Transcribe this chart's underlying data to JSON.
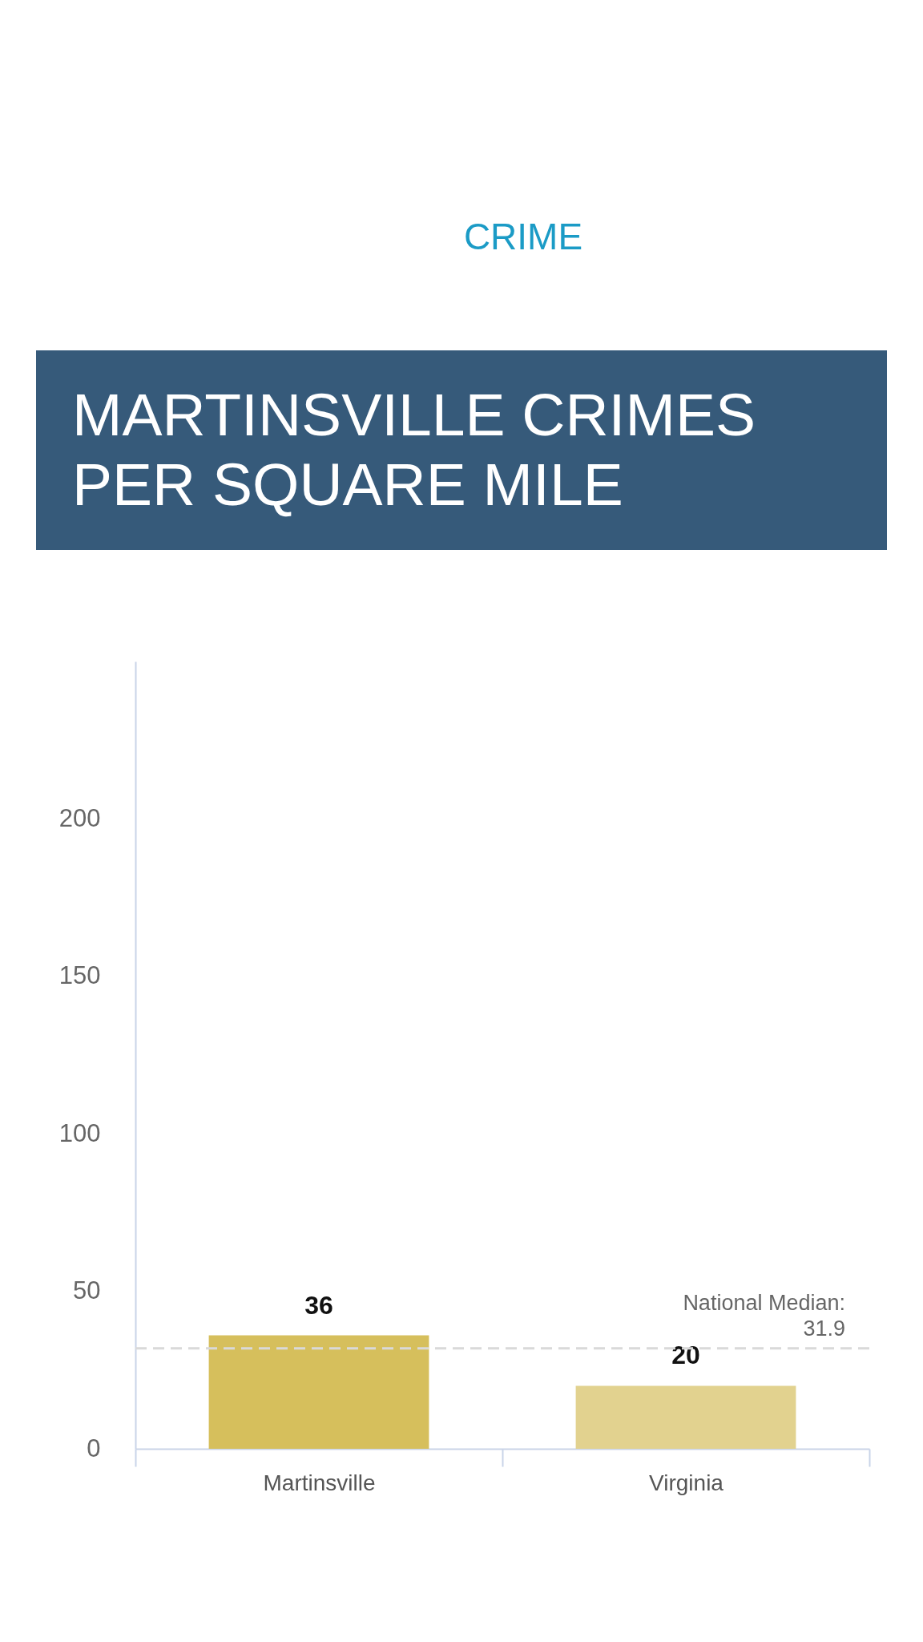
{
  "chart_data": {
    "type": "bar",
    "title": "MARTINSVILLE CRIMES PER SQUARE MILE",
    "annotations": [
      "CRIME"
    ],
    "categories": [
      "Martinsville",
      "Virginia"
    ],
    "values": [
      36,
      20
    ],
    "colors": [
      "#d6bf5c",
      "#e2d28f"
    ],
    "ylim": [
      0,
      250
    ],
    "yticks": [
      0,
      50,
      100,
      150,
      200
    ],
    "data_labels": true,
    "ref_lines": [
      {
        "axis": "y",
        "value": 31.9,
        "label": "National Median: 31.9",
        "color": "#d9d9d9",
        "line_style": "dashed"
      }
    ]
  }
}
